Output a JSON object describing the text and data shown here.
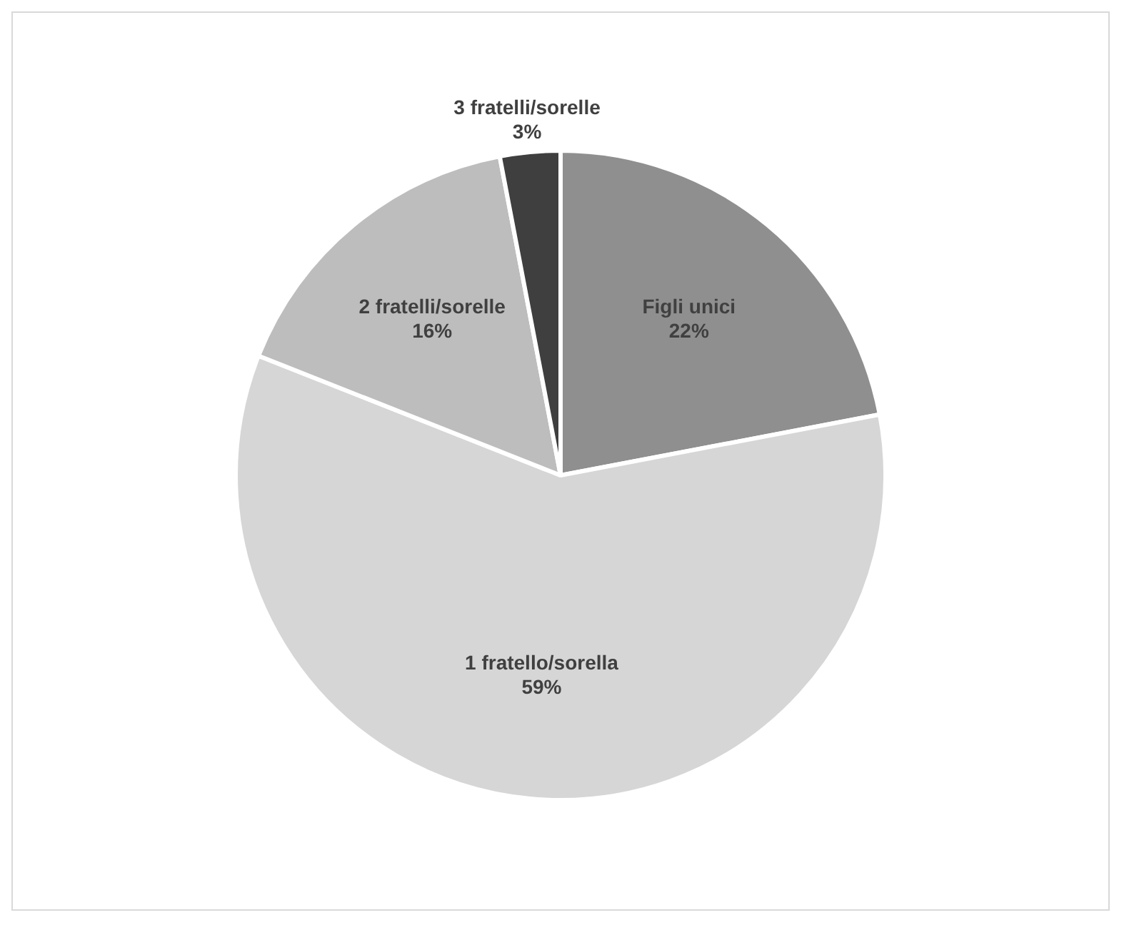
{
  "chart_data": {
    "type": "pie",
    "categories": [
      "Figli unici",
      "1 fratello/sorella",
      "2 fratelli/sorelle",
      "3 fratelli/sorelle"
    ],
    "values": [
      22,
      59,
      16,
      3
    ],
    "value_labels": [
      "22%",
      "59%",
      "16%",
      "3%"
    ],
    "colors": [
      "#8f8f8f",
      "#d6d6d6",
      "#bdbdbd",
      "#3f3f3f"
    ],
    "legend": false
  }
}
